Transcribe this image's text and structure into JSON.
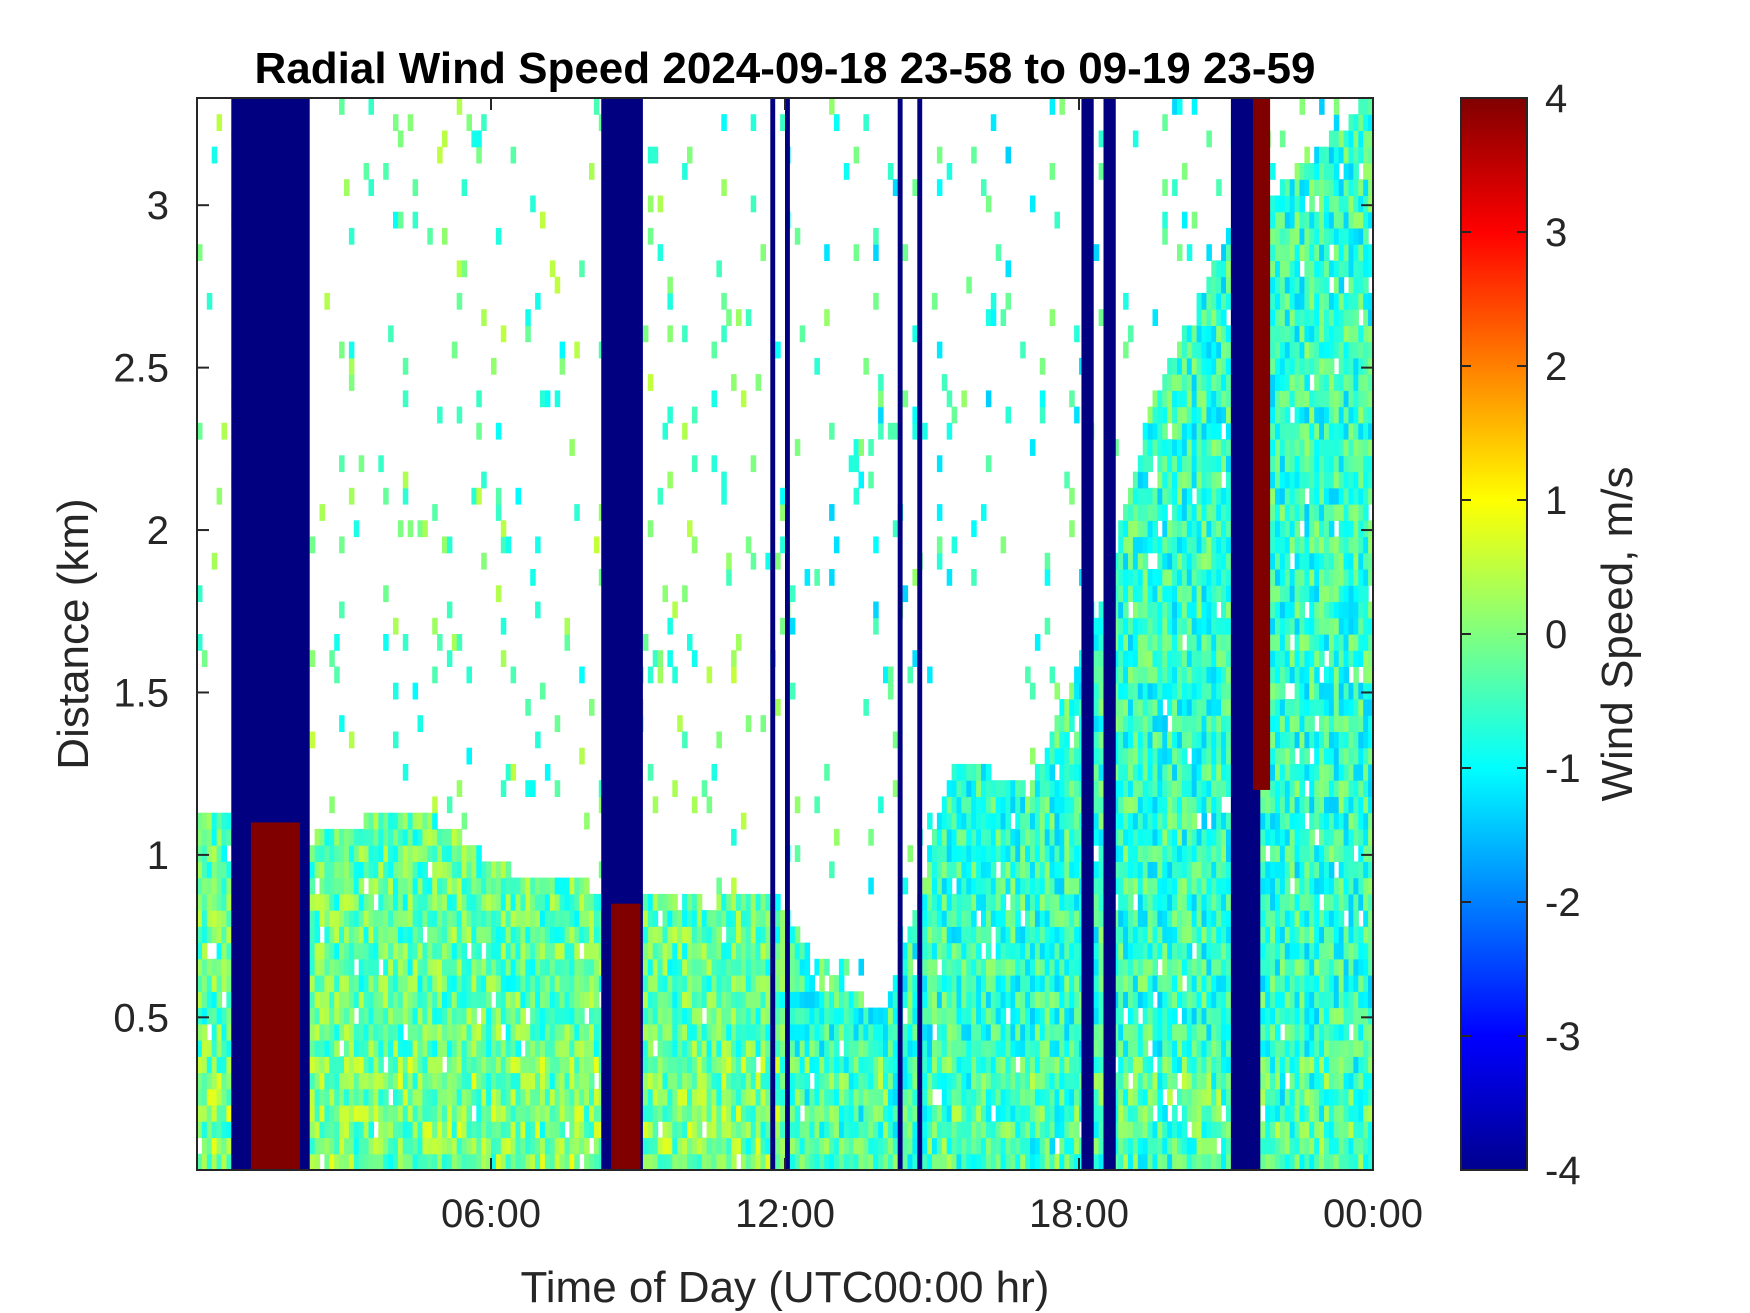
{
  "chart_data": {
    "type": "heatmap",
    "title": "Radial Wind Speed 2024-09-18 23-58 to 09-19 23-59",
    "xlabel": "Time of Day (UTC00:00 hr)",
    "ylabel": "Distance (km)",
    "x_unit": "hours",
    "xlim": [
      0,
      24
    ],
    "ylim": [
      0.03,
      3.33
    ],
    "x_ticks": [
      {
        "value": 6,
        "label": "06:00"
      },
      {
        "value": 12,
        "label": "12:00"
      },
      {
        "value": 18,
        "label": "18:00"
      },
      {
        "value": 24,
        "label": "00:00"
      }
    ],
    "y_ticks": [
      {
        "value": 0.5,
        "label": "0.5"
      },
      {
        "value": 1,
        "label": "1"
      },
      {
        "value": 1.5,
        "label": "1.5"
      },
      {
        "value": 2,
        "label": "2"
      },
      {
        "value": 2.5,
        "label": "2.5"
      },
      {
        "value": 3,
        "label": "3"
      }
    ],
    "colorbar": {
      "label": "Wind Speed, m/s",
      "colormap": "jet",
      "clim": [
        -4,
        4
      ],
      "ticks": [
        {
          "value": 4,
          "label": "4"
        },
        {
          "value": 3,
          "label": "3"
        },
        {
          "value": 2,
          "label": "2"
        },
        {
          "value": 1,
          "label": "1"
        },
        {
          "value": 0,
          "label": "0"
        },
        {
          "value": -1,
          "label": "-1"
        },
        {
          "value": -2,
          "label": "-2"
        },
        {
          "value": -3,
          "label": "-3"
        },
        {
          "value": -4,
          "label": "-4"
        }
      ]
    },
    "grid": false,
    "saturated_columns": [
      {
        "t0": 0.7,
        "t1": 2.3,
        "value": -4
      },
      {
        "t0": 8.25,
        "t1": 9.1,
        "value": -4
      },
      {
        "t0": 11.7,
        "t1": 11.8,
        "value": -4
      },
      {
        "t0": 12.0,
        "t1": 12.1,
        "value": -4
      },
      {
        "t0": 14.3,
        "t1": 14.4,
        "value": -4
      },
      {
        "t0": 14.7,
        "t1": 14.8,
        "value": -4
      },
      {
        "t0": 18.05,
        "t1": 18.3,
        "value": -4
      },
      {
        "t0": 18.5,
        "t1": 18.75,
        "value": -4
      },
      {
        "t0": 21.1,
        "t1": 21.7,
        "value": -4
      }
    ],
    "positive_patches": [
      {
        "t0": 1.1,
        "t1": 2.1,
        "d0": 0.03,
        "d1": 1.1,
        "value": 4
      },
      {
        "t0": 8.45,
        "t1": 9.05,
        "d0": 0.03,
        "d1": 0.85,
        "value": 4
      },
      {
        "t0": 21.55,
        "t1": 21.9,
        "d0": 1.2,
        "d1": 3.33,
        "value": 4
      }
    ],
    "return_boundary": [
      {
        "t": 0,
        "d": 1.15
      },
      {
        "t": 2.3,
        "d": 1.05
      },
      {
        "t": 4.5,
        "d": 1.15
      },
      {
        "t": 6.5,
        "d": 0.95
      },
      {
        "t": 8.2,
        "d": 0.9
      },
      {
        "t": 10.5,
        "d": 0.85
      },
      {
        "t": 11.7,
        "d": 0.9
      },
      {
        "t": 12.5,
        "d": 0.7
      },
      {
        "t": 14.0,
        "d": 0.5
      },
      {
        "t": 15.5,
        "d": 1.3
      },
      {
        "t": 17.0,
        "d": 1.2
      },
      {
        "t": 18.5,
        "d": 1.8
      },
      {
        "t": 19.5,
        "d": 2.4
      },
      {
        "t": 21.0,
        "d": 2.9
      },
      {
        "t": 24.0,
        "d": 3.33
      }
    ]
  }
}
